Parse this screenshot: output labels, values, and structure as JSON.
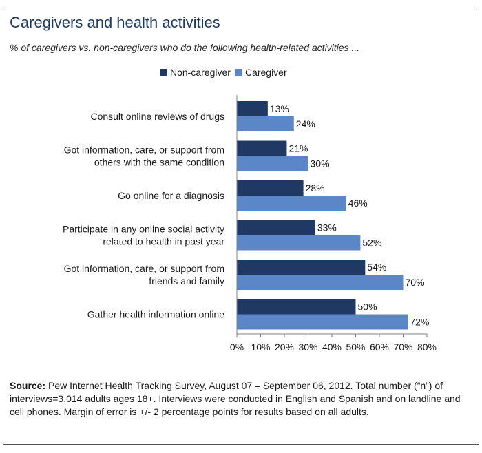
{
  "chart_data": {
    "type": "bar",
    "orientation": "horizontal",
    "title": "Caregivers and health activities",
    "subtitle": "% of caregivers vs. non-caregivers who do the following health-related activities ...",
    "categories": [
      [
        "Consult online reviews of drugs"
      ],
      [
        "Got information, care, or support from",
        "others with the same condition"
      ],
      [
        "Go online for a diagnosis"
      ],
      [
        "Participate in any online social activity",
        "related to health in past year"
      ],
      [
        "Got information, care, or support from",
        "friends and family"
      ],
      [
        "Gather health information online"
      ]
    ],
    "series": [
      {
        "name": "Non-caregiver",
        "color": "#1f3864",
        "values": [
          13,
          21,
          28,
          33,
          54,
          50
        ]
      },
      {
        "name": "Caregiver",
        "color": "#5b86c8",
        "values": [
          24,
          30,
          46,
          52,
          70,
          72
        ]
      }
    ],
    "xlim": [
      0,
      80
    ],
    "xticks": [
      0,
      10,
      20,
      30,
      40,
      50,
      60,
      70,
      80
    ],
    "value_suffix": "%",
    "legend_position": "top"
  },
  "source": {
    "label": "Source:",
    "text": " Pew Internet Health Tracking Survey, August 07 – September 06, 2012. Total number (“n”) of interviews=3,014 adults ages 18+. Interviews were conducted in English and Spanish and on landline and cell phones.  Margin of error is +/- 2 percentage points for results based on all adults."
  },
  "colors": {
    "title": "#1f3d63",
    "axis": "#808080"
  }
}
